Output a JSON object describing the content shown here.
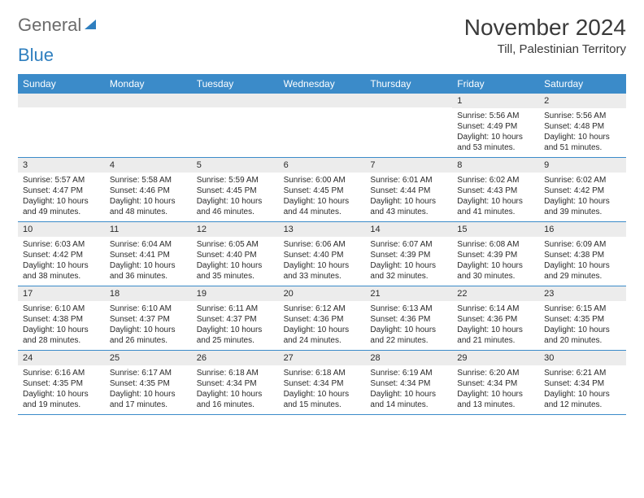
{
  "logo": {
    "text1": "General",
    "text2": "Blue"
  },
  "title": "November 2024",
  "location": "Till, Palestinian Territory",
  "colors": {
    "header_bg": "#3b8bc9",
    "header_text": "#ffffff",
    "daynum_bg": "#ececec",
    "week_border": "#3b8bc9",
    "text": "#2a2a2a",
    "logo_gray": "#6b6b6b",
    "logo_blue": "#2f7fbf"
  },
  "day_names": [
    "Sunday",
    "Monday",
    "Tuesday",
    "Wednesday",
    "Thursday",
    "Friday",
    "Saturday"
  ],
  "weeks": [
    [
      {
        "n": "",
        "sunrise": "",
        "sunset": "",
        "daylight": ""
      },
      {
        "n": "",
        "sunrise": "",
        "sunset": "",
        "daylight": ""
      },
      {
        "n": "",
        "sunrise": "",
        "sunset": "",
        "daylight": ""
      },
      {
        "n": "",
        "sunrise": "",
        "sunset": "",
        "daylight": ""
      },
      {
        "n": "",
        "sunrise": "",
        "sunset": "",
        "daylight": ""
      },
      {
        "n": "1",
        "sunrise": "Sunrise: 5:56 AM",
        "sunset": "Sunset: 4:49 PM",
        "daylight": "Daylight: 10 hours and 53 minutes."
      },
      {
        "n": "2",
        "sunrise": "Sunrise: 5:56 AM",
        "sunset": "Sunset: 4:48 PM",
        "daylight": "Daylight: 10 hours and 51 minutes."
      }
    ],
    [
      {
        "n": "3",
        "sunrise": "Sunrise: 5:57 AM",
        "sunset": "Sunset: 4:47 PM",
        "daylight": "Daylight: 10 hours and 49 minutes."
      },
      {
        "n": "4",
        "sunrise": "Sunrise: 5:58 AM",
        "sunset": "Sunset: 4:46 PM",
        "daylight": "Daylight: 10 hours and 48 minutes."
      },
      {
        "n": "5",
        "sunrise": "Sunrise: 5:59 AM",
        "sunset": "Sunset: 4:45 PM",
        "daylight": "Daylight: 10 hours and 46 minutes."
      },
      {
        "n": "6",
        "sunrise": "Sunrise: 6:00 AM",
        "sunset": "Sunset: 4:45 PM",
        "daylight": "Daylight: 10 hours and 44 minutes."
      },
      {
        "n": "7",
        "sunrise": "Sunrise: 6:01 AM",
        "sunset": "Sunset: 4:44 PM",
        "daylight": "Daylight: 10 hours and 43 minutes."
      },
      {
        "n": "8",
        "sunrise": "Sunrise: 6:02 AM",
        "sunset": "Sunset: 4:43 PM",
        "daylight": "Daylight: 10 hours and 41 minutes."
      },
      {
        "n": "9",
        "sunrise": "Sunrise: 6:02 AM",
        "sunset": "Sunset: 4:42 PM",
        "daylight": "Daylight: 10 hours and 39 minutes."
      }
    ],
    [
      {
        "n": "10",
        "sunrise": "Sunrise: 6:03 AM",
        "sunset": "Sunset: 4:42 PM",
        "daylight": "Daylight: 10 hours and 38 minutes."
      },
      {
        "n": "11",
        "sunrise": "Sunrise: 6:04 AM",
        "sunset": "Sunset: 4:41 PM",
        "daylight": "Daylight: 10 hours and 36 minutes."
      },
      {
        "n": "12",
        "sunrise": "Sunrise: 6:05 AM",
        "sunset": "Sunset: 4:40 PM",
        "daylight": "Daylight: 10 hours and 35 minutes."
      },
      {
        "n": "13",
        "sunrise": "Sunrise: 6:06 AM",
        "sunset": "Sunset: 4:40 PM",
        "daylight": "Daylight: 10 hours and 33 minutes."
      },
      {
        "n": "14",
        "sunrise": "Sunrise: 6:07 AM",
        "sunset": "Sunset: 4:39 PM",
        "daylight": "Daylight: 10 hours and 32 minutes."
      },
      {
        "n": "15",
        "sunrise": "Sunrise: 6:08 AM",
        "sunset": "Sunset: 4:39 PM",
        "daylight": "Daylight: 10 hours and 30 minutes."
      },
      {
        "n": "16",
        "sunrise": "Sunrise: 6:09 AM",
        "sunset": "Sunset: 4:38 PM",
        "daylight": "Daylight: 10 hours and 29 minutes."
      }
    ],
    [
      {
        "n": "17",
        "sunrise": "Sunrise: 6:10 AM",
        "sunset": "Sunset: 4:38 PM",
        "daylight": "Daylight: 10 hours and 28 minutes."
      },
      {
        "n": "18",
        "sunrise": "Sunrise: 6:10 AM",
        "sunset": "Sunset: 4:37 PM",
        "daylight": "Daylight: 10 hours and 26 minutes."
      },
      {
        "n": "19",
        "sunrise": "Sunrise: 6:11 AM",
        "sunset": "Sunset: 4:37 PM",
        "daylight": "Daylight: 10 hours and 25 minutes."
      },
      {
        "n": "20",
        "sunrise": "Sunrise: 6:12 AM",
        "sunset": "Sunset: 4:36 PM",
        "daylight": "Daylight: 10 hours and 24 minutes."
      },
      {
        "n": "21",
        "sunrise": "Sunrise: 6:13 AM",
        "sunset": "Sunset: 4:36 PM",
        "daylight": "Daylight: 10 hours and 22 minutes."
      },
      {
        "n": "22",
        "sunrise": "Sunrise: 6:14 AM",
        "sunset": "Sunset: 4:36 PM",
        "daylight": "Daylight: 10 hours and 21 minutes."
      },
      {
        "n": "23",
        "sunrise": "Sunrise: 6:15 AM",
        "sunset": "Sunset: 4:35 PM",
        "daylight": "Daylight: 10 hours and 20 minutes."
      }
    ],
    [
      {
        "n": "24",
        "sunrise": "Sunrise: 6:16 AM",
        "sunset": "Sunset: 4:35 PM",
        "daylight": "Daylight: 10 hours and 19 minutes."
      },
      {
        "n": "25",
        "sunrise": "Sunrise: 6:17 AM",
        "sunset": "Sunset: 4:35 PM",
        "daylight": "Daylight: 10 hours and 17 minutes."
      },
      {
        "n": "26",
        "sunrise": "Sunrise: 6:18 AM",
        "sunset": "Sunset: 4:34 PM",
        "daylight": "Daylight: 10 hours and 16 minutes."
      },
      {
        "n": "27",
        "sunrise": "Sunrise: 6:18 AM",
        "sunset": "Sunset: 4:34 PM",
        "daylight": "Daylight: 10 hours and 15 minutes."
      },
      {
        "n": "28",
        "sunrise": "Sunrise: 6:19 AM",
        "sunset": "Sunset: 4:34 PM",
        "daylight": "Daylight: 10 hours and 14 minutes."
      },
      {
        "n": "29",
        "sunrise": "Sunrise: 6:20 AM",
        "sunset": "Sunset: 4:34 PM",
        "daylight": "Daylight: 10 hours and 13 minutes."
      },
      {
        "n": "30",
        "sunrise": "Sunrise: 6:21 AM",
        "sunset": "Sunset: 4:34 PM",
        "daylight": "Daylight: 10 hours and 12 minutes."
      }
    ]
  ]
}
